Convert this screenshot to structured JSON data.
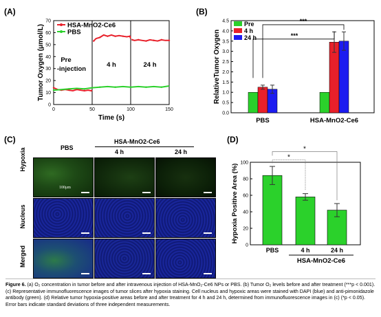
{
  "panel_labels": {
    "a": "(A)",
    "b": "(B)",
    "c": "(C)",
    "d": "(D)"
  },
  "panel_a": {
    "ylabel": "Tumor Oxygen (μmol/L)",
    "xlabel": "Time (s)",
    "legend": [
      "HSA-MnO2-Ce6",
      "PBS"
    ],
    "annot_pre": "Pre",
    "annot_inj": "-injection",
    "annot_4h": "4 h",
    "annot_24h": "24 h",
    "colors": {
      "hsa": "#e8202a",
      "pbs": "#2bd12b"
    }
  },
  "panel_b": {
    "ylabel": "RelativeTumor Oxygen",
    "legend": [
      "Pre",
      "4 h",
      "24 h"
    ],
    "groups": [
      "PBS",
      "HSA-MnO2-Ce6"
    ],
    "sig": [
      "***",
      "***"
    ],
    "colors": {
      "pre": "#2bd12b",
      "h4": "#e8202a",
      "h24": "#1c1cf0"
    }
  },
  "panel_c": {
    "group_label": "HSA-MnO2-Ce6",
    "cols": [
      "PBS",
      "4 h",
      "24 h"
    ],
    "rows": [
      "Hypoxia",
      "Nucleus",
      "Merged"
    ],
    "scale_label": "100μm"
  },
  "panel_d": {
    "ylabel": "Hypoxia Positive Area (%)",
    "sig": [
      "*",
      "*"
    ],
    "group_label": "HSA-MnO2-Ce6"
  },
  "chart_data": [
    {
      "type": "line",
      "xlim": [
        0,
        150
      ],
      "ylim": [
        0,
        70
      ],
      "xticks": [
        0,
        50,
        100,
        150
      ],
      "yticks": [
        0,
        10,
        20,
        30,
        40,
        50,
        60,
        70
      ],
      "xlabel": "Time (s)",
      "ylabel": "Tumor Oxygen (μmol/L)",
      "series": [
        {
          "name": "HSA-MnO2-Ce6",
          "x": [
            0,
            5,
            10,
            15,
            20,
            25,
            30,
            35,
            40,
            45,
            49,
            50,
            52,
            55,
            60,
            65,
            70,
            75,
            80,
            85,
            90,
            95,
            99,
            100,
            102,
            105,
            110,
            115,
            120,
            125,
            130,
            135,
            140,
            145,
            150
          ],
          "y": [
            14,
            12.5,
            12,
            12.5,
            12,
            11.5,
            12.5,
            12,
            11.5,
            12,
            11.5,
            12,
            53,
            55,
            56,
            58,
            57,
            58,
            57,
            57.5,
            57,
            56.5,
            57,
            55,
            54,
            53.5,
            54,
            53.5,
            53,
            54,
            53.5,
            53,
            54,
            53.5,
            53.5
          ]
        },
        {
          "name": "PBS",
          "x": [
            0,
            10,
            20,
            30,
            40,
            50,
            60,
            70,
            80,
            90,
            100,
            110,
            120,
            130,
            140,
            150
          ],
          "y": [
            12,
            12.5,
            13,
            13.5,
            13,
            14,
            14.5,
            15,
            14.5,
            15,
            14.5,
            15,
            14.5,
            15,
            14.5,
            15.5
          ]
        }
      ]
    },
    {
      "type": "bar",
      "categories": [
        "PBS",
        "HSA-MnO2-Ce6"
      ],
      "ylim": [
        0,
        4.5
      ],
      "yticks": [
        0.0,
        0.5,
        1.0,
        1.5,
        2.0,
        2.5,
        3.0,
        3.5,
        4.0,
        4.5
      ],
      "ylabel": "RelativeTumor Oxygen",
      "series": [
        {
          "name": "Pre",
          "values": [
            1.0,
            1.0
          ],
          "errors": [
            0,
            0
          ]
        },
        {
          "name": "4 h",
          "values": [
            1.25,
            3.45
          ],
          "errors": [
            0.1,
            0.5
          ]
        },
        {
          "name": "24 h",
          "values": [
            1.15,
            3.5
          ],
          "errors": [
            0.2,
            0.45
          ]
        }
      ]
    },
    {
      "type": "bar",
      "categories": [
        "PBS",
        "4 h",
        "24 h"
      ],
      "values": [
        84,
        58,
        42
      ],
      "errors": [
        11,
        4,
        8
      ],
      "ylim": [
        0,
        100
      ],
      "yticks": [
        0,
        20,
        40,
        60,
        80,
        100
      ],
      "ylabel": "Hypoxia Positive Area (%)"
    }
  ],
  "caption": {
    "bold": "Figure 6.",
    "text": " (a) O₂ concentration in tumor before and after intravenous injection of HSA-MnO₂-Ce6 NPs or PBS. (b) Tumor O₂ levels before and after treatment (***p < 0.001). (c) Representative immunofluorescence images of tumor slices after hypoxia staining. Cell nucleus and hypoxic areas were stained with DAPI (blue) and anti-pimonidazole antibody (green). (d) Relative tumor hypoxia-positive areas before and after treatment for 4 h and 24 h, determined from immunofluorescence images in (c) (*p < 0.05). Error bars indicate standard deviations of three independent measurements."
  }
}
